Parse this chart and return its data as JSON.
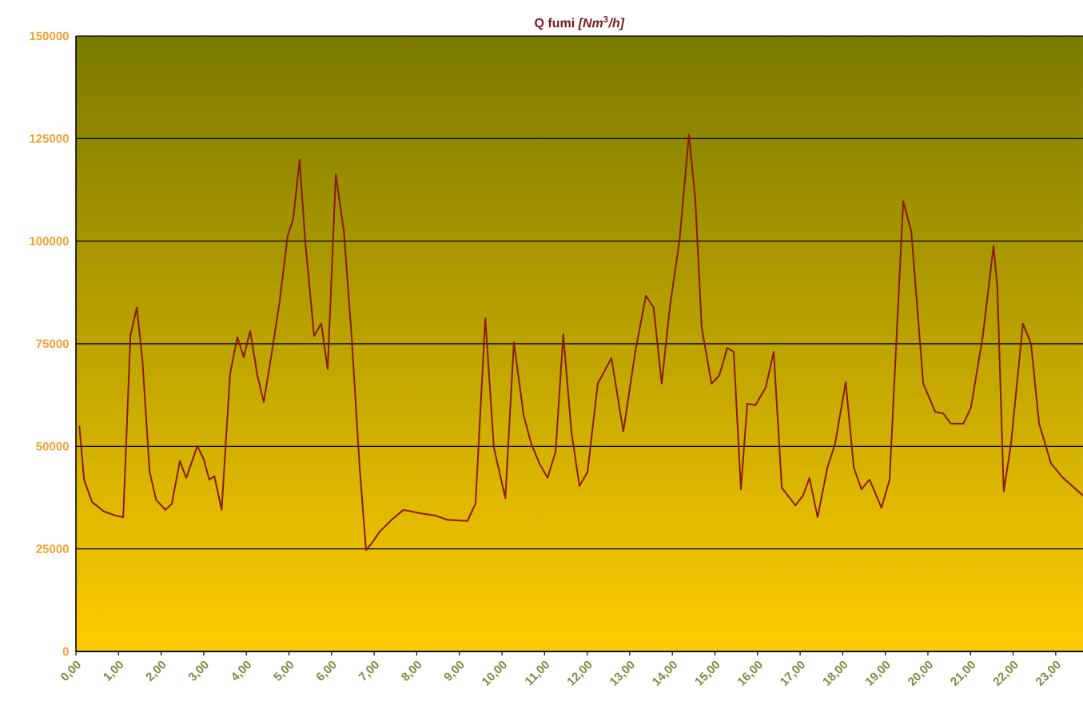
{
  "chart_data": {
    "type": "line",
    "title": "Q fumi *[Nm*$^{3}$*/h]*",
    "x": [
      0.08,
      0.19,
      0.38,
      0.66,
      0.94,
      1.11,
      1.28,
      1.43,
      1.56,
      1.73,
      1.88,
      2.1,
      2.25,
      2.44,
      2.59,
      2.85,
      3.0,
      3.13,
      3.25,
      3.42,
      3.62,
      3.79,
      3.94,
      4.09,
      4.26,
      4.41,
      4.6,
      4.78,
      4.97,
      5.1,
      5.25,
      5.38,
      5.59,
      5.76,
      5.91,
      6.1,
      6.29,
      6.47,
      6.66,
      6.81,
      6.94,
      7.13,
      7.41,
      7.69,
      8.07,
      8.44,
      8.72,
      9.19,
      9.38,
      9.61,
      9.81,
      10.08,
      10.28,
      10.51,
      10.69,
      10.88,
      11.07,
      11.26,
      11.44,
      11.63,
      11.82,
      12.01,
      12.25,
      12.57,
      12.85,
      13.13,
      13.38,
      13.56,
      13.75,
      13.94,
      14.17,
      14.39,
      14.54,
      14.69,
      14.92,
      15.1,
      15.29,
      15.44,
      15.61,
      15.76,
      15.95,
      16.19,
      16.38,
      16.57,
      16.89,
      17.07,
      17.22,
      17.41,
      17.64,
      17.82,
      18.07,
      18.26,
      18.44,
      18.63,
      18.91,
      19.1,
      19.42,
      19.61,
      19.89,
      20.17,
      20.36,
      20.54,
      20.83,
      21.01,
      21.29,
      21.54,
      21.63,
      21.78,
      21.95,
      22.23,
      22.42,
      22.61,
      22.89,
      23.17,
      23.64
    ],
    "series": [
      {
        "color": "#8b1a00",
        "values": [
          55000,
          41900,
          36400,
          34100,
          33100,
          32700,
          77000,
          83800,
          71100,
          43800,
          37000,
          34500,
          36000,
          46400,
          42300,
          50100,
          46800,
          41900,
          42700,
          34500,
          67800,
          76600,
          71700,
          78100,
          67200,
          60800,
          73000,
          85100,
          101300,
          105400,
          119800,
          100300,
          76900,
          79900,
          68800,
          116300,
          102300,
          77000,
          44800,
          24700,
          26300,
          29200,
          32100,
          34500,
          33700,
          33100,
          32100,
          31800,
          36000,
          81200,
          49700,
          37400,
          75400,
          57500,
          50600,
          45800,
          42300,
          48700,
          77300,
          53600,
          40300,
          43800,
          65300,
          71500,
          53600,
          73000,
          86700,
          83800,
          65300,
          83800,
          100300,
          126000,
          110100,
          78900,
          65300,
          67200,
          74000,
          73000,
          39500,
          60400,
          60000,
          64300,
          73000,
          39900,
          35600,
          38000,
          42300,
          32700,
          44800,
          50600,
          65600,
          44800,
          39500,
          41900,
          35000,
          41900,
          109700,
          102300,
          65300,
          58400,
          58000,
          55500,
          55500,
          59400,
          77000,
          98800,
          88600,
          39000,
          50600,
          79900,
          75000,
          55500,
          45800,
          42300,
          38000
        ]
      }
    ],
    "xlim": [
      0,
      23.64
    ],
    "ylim": [
      0,
      150000
    ],
    "xticks": [
      {
        "value": 0,
        "label": "0,00"
      },
      {
        "value": 1,
        "label": "1,00"
      },
      {
        "value": 2,
        "label": "2,00"
      },
      {
        "value": 3,
        "label": "3,00"
      },
      {
        "value": 4,
        "label": "4,00"
      },
      {
        "value": 5,
        "label": "5,00"
      },
      {
        "value": 6,
        "label": "6,00"
      },
      {
        "value": 7,
        "label": "7,00"
      },
      {
        "value": 8,
        "label": "8,00"
      },
      {
        "value": 9,
        "label": "9,00"
      },
      {
        "value": 10,
        "label": "10,00"
      },
      {
        "value": 11,
        "label": "11,00"
      },
      {
        "value": 12,
        "label": "12,00"
      },
      {
        "value": 13,
        "label": "13,00"
      },
      {
        "value": 14,
        "label": "14,00"
      },
      {
        "value": 15,
        "label": "15,00"
      },
      {
        "value": 16,
        "label": "16,00"
      },
      {
        "value": 17,
        "label": "17,00"
      },
      {
        "value": 18,
        "label": "18,00"
      },
      {
        "value": 19,
        "label": "19,00"
      },
      {
        "value": 20,
        "label": "20,00"
      },
      {
        "value": 21,
        "label": "21,00"
      },
      {
        "value": 22,
        "label": "22,00"
      },
      {
        "value": 23,
        "label": "23,00"
      }
    ],
    "yticks": [
      0,
      25000,
      50000,
      75000,
      100000,
      125000,
      150000
    ],
    "grid": "y",
    "line_style": "solid"
  }
}
